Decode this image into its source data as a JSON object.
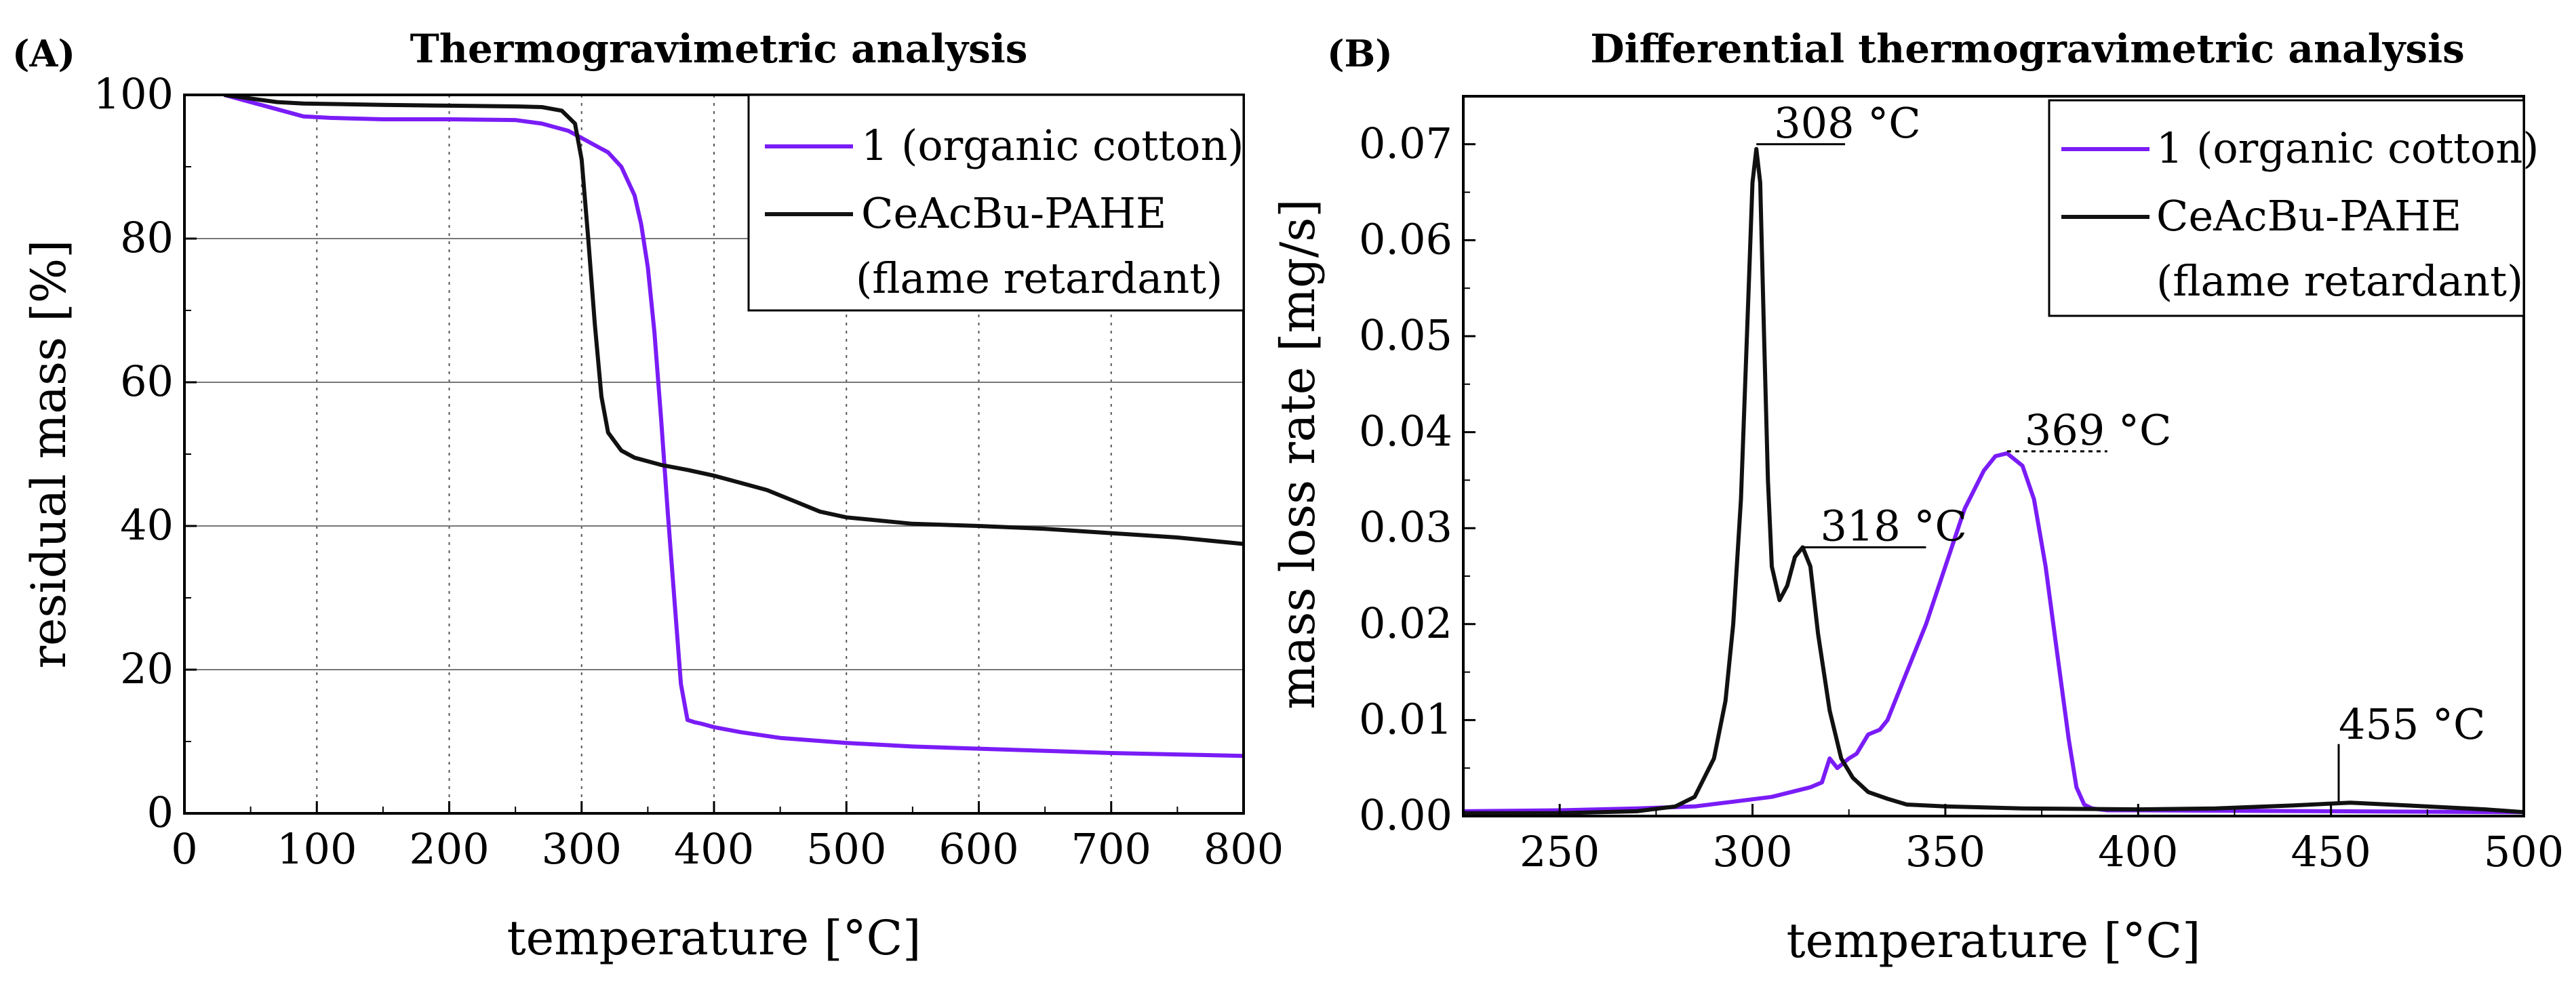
{
  "chart_data": [
    {
      "type": "line",
      "panel_label": "(A)",
      "title": "Thermogravimetric analysis",
      "xlabel": "temperature [°C]",
      "ylabel": "residual mass [%]",
      "xlim": [
        0,
        800
      ],
      "ylim": [
        0,
        100
      ],
      "xticks": [
        0,
        100,
        200,
        300,
        400,
        500,
        600,
        700,
        800
      ],
      "yticks": [
        0,
        20,
        40,
        60,
        80,
        100
      ],
      "grid": {
        "x": "dotted",
        "y": "solid"
      },
      "legend": {
        "placement": "top-right",
        "entries": [
          {
            "lines": [
              "1 (organic cotton)"
            ],
            "series": 0
          },
          {
            "lines": [
              "CeAcBu-PAHE",
              "(flame retardant)"
            ],
            "series": 1
          }
        ]
      },
      "series": [
        {
          "name": "1 (organic cotton)",
          "color": "#7a1cf6",
          "x": [
            30,
            50,
            70,
            90,
            110,
            150,
            200,
            250,
            270,
            290,
            300,
            310,
            320,
            330,
            340,
            345,
            350,
            355,
            360,
            365,
            370,
            375,
            380,
            385,
            390,
            400,
            420,
            450,
            500,
            550,
            600,
            650,
            700,
            750,
            800
          ],
          "y": [
            100,
            99,
            98,
            97,
            96.8,
            96.6,
            96.6,
            96.5,
            96,
            95,
            94,
            93,
            92,
            90,
            86,
            82,
            76,
            67,
            55,
            42,
            30,
            18,
            13,
            12.7,
            12.5,
            12,
            11.3,
            10.5,
            9.8,
            9.3,
            9,
            8.7,
            8.4,
            8.2,
            8
          ]
        },
        {
          "name": "CeAcBu-PAHE",
          "color": "#111111",
          "x": [
            30,
            50,
            70,
            90,
            150,
            200,
            250,
            270,
            285,
            295,
            300,
            305,
            310,
            315,
            320,
            330,
            340,
            360,
            380,
            400,
            420,
            440,
            460,
            480,
            500,
            550,
            600,
            650,
            700,
            750,
            800
          ],
          "y": [
            100,
            99.5,
            99,
            98.8,
            98.6,
            98.5,
            98.4,
            98.3,
            97.8,
            96,
            91,
            80,
            68,
            58,
            53,
            50.5,
            49.5,
            48.5,
            47.8,
            47,
            46,
            45,
            43.5,
            42,
            41.2,
            40.3,
            40,
            39.6,
            39,
            38.4,
            37.5
          ]
        }
      ]
    },
    {
      "type": "line",
      "panel_label": "(B)",
      "title": "Differential thermogravimetric analysis",
      "xlabel": "temperature [°C]",
      "ylabel": "mass loss rate [mg/s]",
      "xlim": [
        225,
        500
      ],
      "ylim": [
        0,
        0.075
      ],
      "xticks": [
        250,
        300,
        350,
        400,
        450,
        500
      ],
      "yticks": [
        0.0,
        0.01,
        0.02,
        0.03,
        0.04,
        0.05,
        0.06,
        0.07
      ],
      "ytick_labels": [
        "0.00",
        "0.01",
        "0.02",
        "0.03",
        "0.04",
        "0.05",
        "0.06",
        "0.07"
      ],
      "grid": {
        "x": "none",
        "y": "none"
      },
      "legend": {
        "placement": "top-right",
        "entries": [
          {
            "lines": [
              "1 (organic cotton)"
            ],
            "series": 0
          },
          {
            "lines": [
              "CeAcBu-PAHE",
              "(flame retardant)"
            ],
            "series": 1
          }
        ]
      },
      "annotations": [
        {
          "text": "308 °C",
          "x": 301,
          "y": 0.07,
          "leader_to_x": 324,
          "style": "solid"
        },
        {
          "text": "318 °C",
          "x": 313,
          "y": 0.028,
          "leader_to_x": 345,
          "style": "solid"
        },
        {
          "text": "369 °C",
          "x": 366,
          "y": 0.038,
          "leader_to_x": 392,
          "style": "dashed"
        },
        {
          "text": "455 °C",
          "x": 452,
          "y": 0.0015,
          "tick_to_y": 0.0075,
          "style": "solid"
        }
      ],
      "series": [
        {
          "name": "1 (organic cotton)",
          "color": "#7a1cf6",
          "x": [
            225,
            250,
            270,
            285,
            295,
            305,
            315,
            318,
            320,
            322,
            325,
            327,
            330,
            333,
            335,
            340,
            345,
            350,
            355,
            360,
            363,
            366,
            370,
            373,
            376,
            379,
            382,
            384,
            386,
            388,
            392,
            400,
            450,
            500
          ],
          "y": [
            0.0005,
            0.0006,
            0.0008,
            0.001,
            0.0015,
            0.002,
            0.003,
            0.0035,
            0.006,
            0.005,
            0.006,
            0.0065,
            0.0085,
            0.009,
            0.01,
            0.015,
            0.02,
            0.026,
            0.032,
            0.036,
            0.0375,
            0.0378,
            0.0365,
            0.033,
            0.026,
            0.017,
            0.008,
            0.003,
            0.0012,
            0.0008,
            0.0006,
            0.0006,
            0.0005,
            0.0004
          ]
        },
        {
          "name": "CeAcBu-PAHE",
          "color": "#111111",
          "x": [
            225,
            250,
            270,
            280,
            285,
            290,
            293,
            295,
            297,
            299,
            300,
            301,
            302,
            303,
            304,
            305,
            307,
            309,
            311,
            313,
            315,
            317,
            320,
            323,
            326,
            330,
            335,
            340,
            350,
            370,
            400,
            420,
            440,
            450,
            455,
            470,
            490,
            500
          ],
          "y": [
            0.0003,
            0.0003,
            0.0005,
            0.001,
            0.002,
            0.006,
            0.012,
            0.02,
            0.033,
            0.055,
            0.066,
            0.0695,
            0.066,
            0.05,
            0.035,
            0.026,
            0.0225,
            0.024,
            0.027,
            0.028,
            0.026,
            0.019,
            0.011,
            0.006,
            0.004,
            0.0025,
            0.0018,
            0.0012,
            0.001,
            0.0008,
            0.0007,
            0.0008,
            0.0011,
            0.0013,
            0.0014,
            0.0011,
            0.0007,
            0.0004
          ]
        }
      ]
    }
  ]
}
